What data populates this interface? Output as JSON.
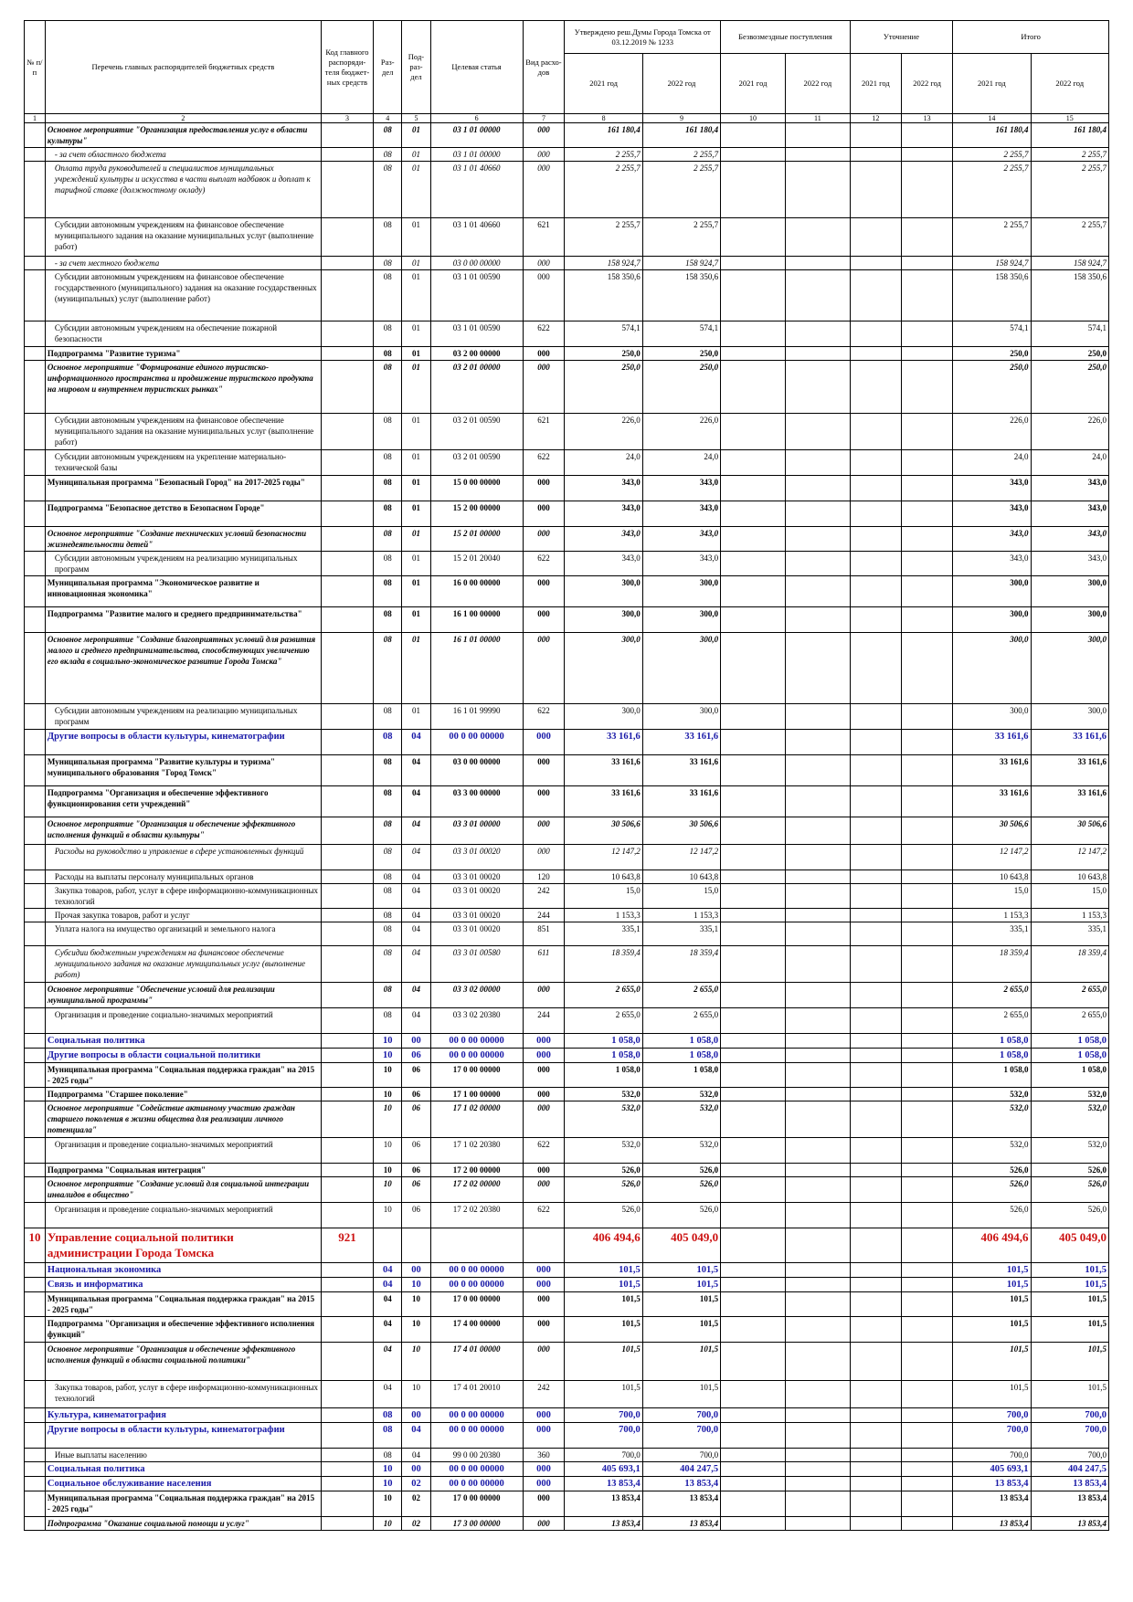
{
  "headers": {
    "num": "№ п/п",
    "name": "Перечень главных распорядителей бюджетных средств",
    "code": "Код главного распоряди-теля бюджет-ных средств",
    "razdel": "Раз-дел",
    "podrazdel": "Под-раз-дел",
    "target": "Целевая статья",
    "vid": "Вид расхо-дов",
    "approved": "Утверждено реш.Думы Города Томска от 03.12.2019 № 1233",
    "free": "Безвозмездные поступления",
    "clarify": "Уточнение",
    "total": "Итого",
    "y2021": "2021 год",
    "y2022": "2022 год"
  },
  "col_numbers": [
    "1",
    "2",
    "3",
    "4",
    "5",
    "6",
    "7",
    "8",
    "9",
    "10",
    "11",
    "12",
    "13",
    "14",
    "15"
  ],
  "rows": [
    {
      "s": "bi",
      "h": 26,
      "name": "Основное мероприятие \"Организация предоставления услуг в области культуры\"",
      "r": "08",
      "p": "01",
      "t": "03 1 01 00000",
      "v": "000",
      "a1": "161 180,4",
      "a2": "161 180,4",
      "t1": "161 180,4",
      "t2": "161 180,4"
    },
    {
      "s": "i",
      "h": 14,
      "ind": 1,
      "name": "- за счет областного бюджета",
      "r": "08",
      "p": "01",
      "t": "03 1 01 00000",
      "v": "000",
      "a1": "2 255,7",
      "a2": "2 255,7",
      "t1": "2 255,7",
      "t2": "2 255,7"
    },
    {
      "s": "i",
      "h": 62,
      "ind": 1,
      "name": "Оплата труда руководителей и специалистов муниципальных учреждений культуры и искусства в части выплат надбавок и доплат к тарифной ставке (должностному окладу)",
      "r": "08",
      "p": "01",
      "t": "03 1 01 40660",
      "v": "000",
      "a1": "2 255,7",
      "a2": "2 255,7",
      "t1": "2 255,7",
      "t2": "2 255,7"
    },
    {
      "s": "n",
      "h": 42,
      "ind": 1,
      "name": "Субсидии автономным учреждениям на финансовое обеспечение муниципального задания на оказание муниципальных услуг (выполнение работ)",
      "r": "08",
      "p": "01",
      "t": "03 1 01 40660",
      "v": "621",
      "a1": "2 255,7",
      "a2": "2 255,7",
      "t1": "2 255,7",
      "t2": "2 255,7"
    },
    {
      "s": "i",
      "h": 12,
      "ind": 1,
      "name": "- за счет местного бюджета",
      "r": "08",
      "p": "01",
      "t": "03 0 00 00000",
      "v": "000",
      "a1": "158 924,7",
      "a2": "158 924,7",
      "t1": "158 924,7",
      "t2": "158 924,7"
    },
    {
      "s": "n",
      "h": 56,
      "ind": 1,
      "name": "Субсидии автономным учреждениям на финансовое обеспечение государственного (муниципального) задания на оказание государственных (муниципальных) услуг (выполнение работ)",
      "r": "08",
      "p": "01",
      "t": "03 1 01 00590",
      "v": "000",
      "a1": "158 350,6",
      "a2": "158 350,6",
      "t1": "158 350,6",
      "t2": "158 350,6"
    },
    {
      "s": "n",
      "h": 28,
      "ind": 1,
      "name": "Субсидии автономным учреждениям на обеспечение пожарной безопасности",
      "r": "08",
      "p": "01",
      "t": "03 1 01 00590",
      "v": "622",
      "a1": "574,1",
      "a2": "574,1",
      "t1": "574,1",
      "t2": "574,1"
    },
    {
      "s": "b",
      "h": 14,
      "name": "Подпрограмма \"Развитие туризма\"",
      "r": "08",
      "p": "01",
      "t": "03 2 00 00000",
      "v": "000",
      "a1": "250,0",
      "a2": "250,0",
      "t1": "250,0",
      "t2": "250,0"
    },
    {
      "s": "bi",
      "h": 58,
      "name": "Основное мероприятие \"Формирование единого туристско-информационного пространства и продвижение туристского продукта на мировом и внутреннем туристских рынках\"",
      "r": "08",
      "p": "01",
      "t": "03 2 01 00000",
      "v": "000",
      "a1": "250,0",
      "a2": "250,0",
      "t1": "250,0",
      "t2": "250,0"
    },
    {
      "s": "n",
      "h": 40,
      "ind": 1,
      "name": "Субсидии автономным учреждениям на финансовое обеспечение муниципального задания на оказание муниципальных услуг (выполнение работ)",
      "r": "08",
      "p": "01",
      "t": "03 2 01 00590",
      "v": "621",
      "a1": "226,0",
      "a2": "226,0",
      "t1": "226,0",
      "t2": "226,0"
    },
    {
      "s": "n",
      "h": 28,
      "ind": 1,
      "name": "Субсидии автономным учреждениям на укрепление материально-технической базы",
      "r": "08",
      "p": "01",
      "t": "03 2 01 00590",
      "v": "622",
      "a1": "24,0",
      "a2": "24,0",
      "t1": "24,0",
      "t2": "24,0"
    },
    {
      "s": "b",
      "h": 28,
      "name": "Муниципальная программа \"Безопасный Город\" на 2017-2025 годы\"",
      "r": "08",
      "p": "01",
      "t": "15 0 00 00000",
      "v": "000",
      "a1": "343,0",
      "a2": "343,0",
      "t1": "343,0",
      "t2": "343,0"
    },
    {
      "s": "b",
      "h": 28,
      "name": "Подпрограмма \"Безопасное детство в Безопасном Городе\"",
      "r": "08",
      "p": "01",
      "t": "15 2 00 00000",
      "v": "000",
      "a1": "343,0",
      "a2": "343,0",
      "t1": "343,0",
      "t2": "343,0"
    },
    {
      "s": "bi",
      "h": 26,
      "name": "Основное мероприятие \"Создание технических условий безопасности жизнедеятельности детей\"",
      "r": "08",
      "p": "01",
      "t": "15 2 01 00000",
      "v": "000",
      "a1": "343,0",
      "a2": "343,0",
      "t1": "343,0",
      "t2": "343,0"
    },
    {
      "s": "n",
      "h": 26,
      "ind": 1,
      "name": "Субсидии автономным учреждениям на реализацию муниципальных программ",
      "r": "08",
      "p": "01",
      "t": "15 2 01 20040",
      "v": "622",
      "a1": "343,0",
      "a2": "343,0",
      "t1": "343,0",
      "t2": "343,0"
    },
    {
      "s": "b",
      "h": 34,
      "name": "Муниципальная программа \"Экономическое развитие и инновационная экономика\"",
      "r": "08",
      "p": "01",
      "t": "16 0 00 00000",
      "v": "000",
      "a1": "300,0",
      "a2": "300,0",
      "t1": "300,0",
      "t2": "300,0"
    },
    {
      "s": "b",
      "h": 28,
      "name": "Подпрограмма \"Развитие малого и среднего предпринимательства\"",
      "r": "08",
      "p": "01",
      "t": "16 1 00 00000",
      "v": "000",
      "a1": "300,0",
      "a2": "300,0",
      "t1": "300,0",
      "t2": "300,0"
    },
    {
      "s": "bi",
      "h": 78,
      "name": "Основное мероприятие \"Создание благоприятных условий для развития малого и среднего предпринимательства, способствующих увеличению его вклада в социально-экономическое развитие Города Томска\"",
      "r": "08",
      "p": "01",
      "t": "16 1 01 00000",
      "v": "000",
      "a1": "300,0",
      "a2": "300,0",
      "t1": "300,0",
      "t2": "300,0"
    },
    {
      "s": "n",
      "h": 28,
      "ind": 1,
      "name": "Субсидии автономным учреждениям на реализацию муниципальных программ",
      "r": "08",
      "p": "01",
      "t": "16 1 01 99990",
      "v": "622",
      "a1": "300,0",
      "a2": "300,0",
      "t1": "300,0",
      "t2": "300,0"
    },
    {
      "s": "blue",
      "h": 28,
      "name": "Другие вопросы в области культуры, кинематографии",
      "r": "08",
      "p": "04",
      "t": "00 0 00 00000",
      "v": "000",
      "a1": "33 161,6",
      "a2": "33 161,6",
      "t1": "33 161,6",
      "t2": "33 161,6"
    },
    {
      "s": "b",
      "h": 34,
      "name": "Муниципальная программа \"Развитие культуры и туризма\" муниципального образования \"Город Томск\"",
      "r": "08",
      "p": "04",
      "t": "03 0 00 00000",
      "v": "000",
      "a1": "33 161,6",
      "a2": "33 161,6",
      "t1": "33 161,6",
      "t2": "33 161,6"
    },
    {
      "s": "b",
      "h": 34,
      "name": "Подпрограмма \"Организация и обеспечение эффективного функционирования сети учреждений\"",
      "r": "08",
      "p": "04",
      "t": "03 3 00 00000",
      "v": "000",
      "a1": "33 161,6",
      "a2": "33 161,6",
      "t1": "33 161,6",
      "t2": "33 161,6"
    },
    {
      "s": "bi",
      "h": 30,
      "name": "Основное мероприятие \"Организация и обеспечение эффективного исполнения функций в области культуры\"",
      "r": "08",
      "p": "04",
      "t": "03 3 01 00000",
      "v": "000",
      "a1": "30 506,6",
      "a2": "30 506,6",
      "t1": "30 506,6",
      "t2": "30 506,6"
    },
    {
      "s": "i",
      "h": 28,
      "ind": 1,
      "name": "Расходы на руководство и управление в сфере установленных функций",
      "r": "08",
      "p": "04",
      "t": "03 3 01 00020",
      "v": "000",
      "a1": "12 147,2",
      "a2": "12 147,2",
      "t1": "12 147,2",
      "t2": "12 147,2"
    },
    {
      "s": "n",
      "h": 12,
      "ind": 1,
      "name": "Расходы на выплаты персоналу муниципальных органов",
      "r": "08",
      "p": "04",
      "t": "03 3 01 00020",
      "v": "120",
      "a1": "10 643,8",
      "a2": "10 643,8",
      "t1": "10 643,8",
      "t2": "10 643,8"
    },
    {
      "s": "n",
      "h": 26,
      "ind": 1,
      "name": "Закупка товаров, работ, услуг в сфере информационно-коммуникационных технологий",
      "r": "08",
      "p": "04",
      "t": "03 3 01 00020",
      "v": "242",
      "a1": "15,0",
      "a2": "15,0",
      "t1": "15,0",
      "t2": "15,0"
    },
    {
      "s": "n",
      "h": 12,
      "ind": 1,
      "name": "Прочая закупка товаров, работ и услуг",
      "r": "08",
      "p": "04",
      "t": "03 3 01 00020",
      "v": "244",
      "a1": "1 153,3",
      "a2": "1 153,3",
      "t1": "1 153,3",
      "t2": "1 153,3"
    },
    {
      "s": "n",
      "h": 26,
      "ind": 1,
      "name": "Уплата налога на имущество организаций и земельного налога",
      "r": "08",
      "p": "04",
      "t": "03 3 01 00020",
      "v": "851",
      "a1": "335,1",
      "a2": "335,1",
      "t1": "335,1",
      "t2": "335,1"
    },
    {
      "s": "i",
      "h": 40,
      "ind": 1,
      "name": "Субсидии бюджетным учреждениям на финансовое обеспечение муниципального задания на оказание муниципальных услуг (выполнение работ)",
      "r": "08",
      "p": "04",
      "t": "03 3 01 00580",
      "v": "611",
      "a1": "18 359,4",
      "a2": "18 359,4",
      "t1": "18 359,4",
      "t2": "18 359,4"
    },
    {
      "s": "bi",
      "h": 28,
      "name": "Основное мероприятие \"Обеспечение условий для реализации муниципальной программы\"",
      "r": "08",
      "p": "04",
      "t": "03 3 02 00000",
      "v": "000",
      "a1": "2 655,0",
      "a2": "2 655,0",
      "t1": "2 655,0",
      "t2": "2 655,0"
    },
    {
      "s": "n",
      "h": 28,
      "ind": 1,
      "name": "Организация и проведение социально-значимых мероприятий",
      "r": "08",
      "p": "04",
      "t": "03 3 02 20380",
      "v": "244",
      "a1": "2 655,0",
      "a2": "2 655,0",
      "t1": "2 655,0",
      "t2": "2 655,0"
    },
    {
      "s": "blue",
      "h": 16,
      "name": "Социальная политика",
      "r": "10",
      "p": "00",
      "t": "00 0 00 00000",
      "v": "000",
      "a1": "1 058,0",
      "a2": "1 058,0",
      "t1": "1 058,0",
      "t2": "1 058,0"
    },
    {
      "s": "blue",
      "h": 14,
      "name": "Другие вопросы в области социальной политики",
      "r": "10",
      "p": "06",
      "t": "00 0 00 00000",
      "v": "000",
      "a1": "1 058,0",
      "a2": "1 058,0",
      "t1": "1 058,0",
      "t2": "1 058,0"
    },
    {
      "s": "b",
      "h": 26,
      "name": "Муниципальная программа \"Социальная поддержка граждан\" на 2015 - 2025 годы\"",
      "r": "10",
      "p": "06",
      "t": "17 0 00 00000",
      "v": "000",
      "a1": "1 058,0",
      "a2": "1 058,0",
      "t1": "1 058,0",
      "t2": "1 058,0"
    },
    {
      "s": "b",
      "h": 14,
      "name": "Подпрограмма \"Старшее поколение\"",
      "r": "10",
      "p": "06",
      "t": "17 1 00 00000",
      "v": "000",
      "a1": "532,0",
      "a2": "532,0",
      "t1": "532,0",
      "t2": "532,0"
    },
    {
      "s": "bi",
      "h": 40,
      "name": "Основное мероприятие \"Содействие активному участию граждан старшего поколения в жизни общества для реализации личного потенциала\"",
      "r": "10",
      "p": "06",
      "t": "17 1 02 00000",
      "v": "000",
      "a1": "532,0",
      "a2": "532,0",
      "t1": "532,0",
      "t2": "532,0"
    },
    {
      "s": "n",
      "h": 28,
      "ind": 1,
      "name": "Организация и проведение социально-значимых мероприятий",
      "r": "10",
      "p": "06",
      "t": "17 1 02 20380",
      "v": "622",
      "a1": "532,0",
      "a2": "532,0",
      "t1": "532,0",
      "t2": "532,0"
    },
    {
      "s": "b",
      "h": 14,
      "name": "Подпрограмма \"Социальная интеграция\"",
      "r": "10",
      "p": "06",
      "t": "17 2 00 00000",
      "v": "000",
      "a1": "526,0",
      "a2": "526,0",
      "t1": "526,0",
      "t2": "526,0"
    },
    {
      "s": "bi",
      "h": 28,
      "name": "Основное мероприятие \"Создание условий для социальной интеграции инвалидов в общество\"",
      "r": "10",
      "p": "06",
      "t": "17 2 02 00000",
      "v": "000",
      "a1": "526,0",
      "a2": "526,0",
      "t1": "526,0",
      "t2": "526,0"
    },
    {
      "s": "n",
      "h": 28,
      "ind": 1,
      "name": "Организация и проведение социально-значимых мероприятий",
      "r": "10",
      "p": "06",
      "t": "17 2 02 20380",
      "v": "622",
      "a1": "526,0",
      "a2": "526,0",
      "t1": "526,0",
      "t2": "526,0"
    },
    {
      "s": "red",
      "h": 38,
      "num": "10",
      "code": "921",
      "name": "Управление социальной политики администрации Города Томска",
      "r": "",
      "p": "",
      "t": "",
      "v": "",
      "a1": "406 494,6",
      "a2": "405 049,0",
      "t1": "406 494,6",
      "t2": "405 049,0"
    },
    {
      "s": "blue",
      "h": 14,
      "name": "Национальная экономика",
      "r": "04",
      "p": "00",
      "t": "00 0 00 00000",
      "v": "000",
      "a1": "101,5",
      "a2": "101,5",
      "t1": "101,5",
      "t2": "101,5"
    },
    {
      "s": "blue",
      "h": 14,
      "name": "Связь и информатика",
      "r": "04",
      "p": "10",
      "t": "00 0 00 00000",
      "v": "000",
      "a1": "101,5",
      "a2": "101,5",
      "t1": "101,5",
      "t2": "101,5"
    },
    {
      "s": "b",
      "h": 26,
      "name": "Муниципальная программа \"Социальная поддержка граждан\" на 2015 - 2025 годы\"",
      "r": "04",
      "p": "10",
      "t": "17 0 00 00000",
      "v": "000",
      "a1": "101,5",
      "a2": "101,5",
      "t1": "101,5",
      "t2": "101,5"
    },
    {
      "s": "b",
      "h": 28,
      "name": "Подпрограмма \"Организация и обеспечение эффективного исполнения функций\"",
      "r": "04",
      "p": "10",
      "t": "17 4 00 00000",
      "v": "000",
      "a1": "101,5",
      "a2": "101,5",
      "t1": "101,5",
      "t2": "101,5"
    },
    {
      "s": "bi",
      "h": 42,
      "name": "Основное мероприятие \"Организация и обеспечение эффективного исполнения функций в области социальной политики\"",
      "r": "04",
      "p": "10",
      "t": "17 4 01 00000",
      "v": "000",
      "a1": "101,5",
      "a2": "101,5",
      "t1": "101,5",
      "t2": "101,5"
    },
    {
      "s": "n",
      "h": 30,
      "ind": 1,
      "name": "Закупка товаров, работ, услуг в сфере информационно-коммуникационных технологий",
      "r": "04",
      "p": "10",
      "t": "17 4 01 20010",
      "v": "242",
      "a1": "101,5",
      "a2": "101,5",
      "t1": "101,5",
      "t2": "101,5"
    },
    {
      "s": "blue",
      "h": 14,
      "name": "Культура, кинематография",
      "r": "08",
      "p": "00",
      "t": "00 0 00 00000",
      "v": "000",
      "a1": "700,0",
      "a2": "700,0",
      "t1": "700,0",
      "t2": "700,0"
    },
    {
      "s": "blue",
      "h": 28,
      "name": "Другие вопросы в области культуры, кинематографии",
      "r": "08",
      "p": "04",
      "t": "00 0 00 00000",
      "v": "000",
      "a1": "700,0",
      "a2": "700,0",
      "t1": "700,0",
      "t2": "700,0"
    },
    {
      "s": "n",
      "h": 12,
      "ind": 1,
      "name": "Иные выплаты населению",
      "r": "08",
      "p": "04",
      "t": "99 0 00 20380",
      "v": "360",
      "a1": "700,0",
      "a2": "700,0",
      "t1": "700,0",
      "t2": "700,0"
    },
    {
      "s": "blue",
      "h": 16,
      "name": "Социальная политика",
      "r": "10",
      "p": "00",
      "t": "00 0 00 00000",
      "v": "000",
      "a1": "405 693,1",
      "a2": "404 247,5",
      "t1": "405 693,1",
      "t2": "404 247,5"
    },
    {
      "s": "blue",
      "h": 16,
      "name": "Социальное обслуживание населения",
      "r": "10",
      "p": "02",
      "t": "00 0 00 00000",
      "v": "000",
      "a1": "13 853,4",
      "a2": "13 853,4",
      "t1": "13 853,4",
      "t2": "13 853,4"
    },
    {
      "s": "b",
      "h": 28,
      "name": "Муниципальная программа \"Социальная поддержка граждан\" на 2015 - 2025 годы\"",
      "r": "10",
      "p": "02",
      "t": "17 0 00 00000",
      "v": "000",
      "a1": "13 853,4",
      "a2": "13 853,4",
      "t1": "13 853,4",
      "t2": "13 853,4"
    },
    {
      "s": "bi",
      "h": 14,
      "name": "Подпрограмма \"Оказание социальной помощи и услуг\"",
      "r": "10",
      "p": "02",
      "t": "17 3 00 00000",
      "v": "000",
      "a1": "13 853,4",
      "a2": "13 853,4",
      "t1": "13 853,4",
      "t2": "13 853,4"
    }
  ]
}
